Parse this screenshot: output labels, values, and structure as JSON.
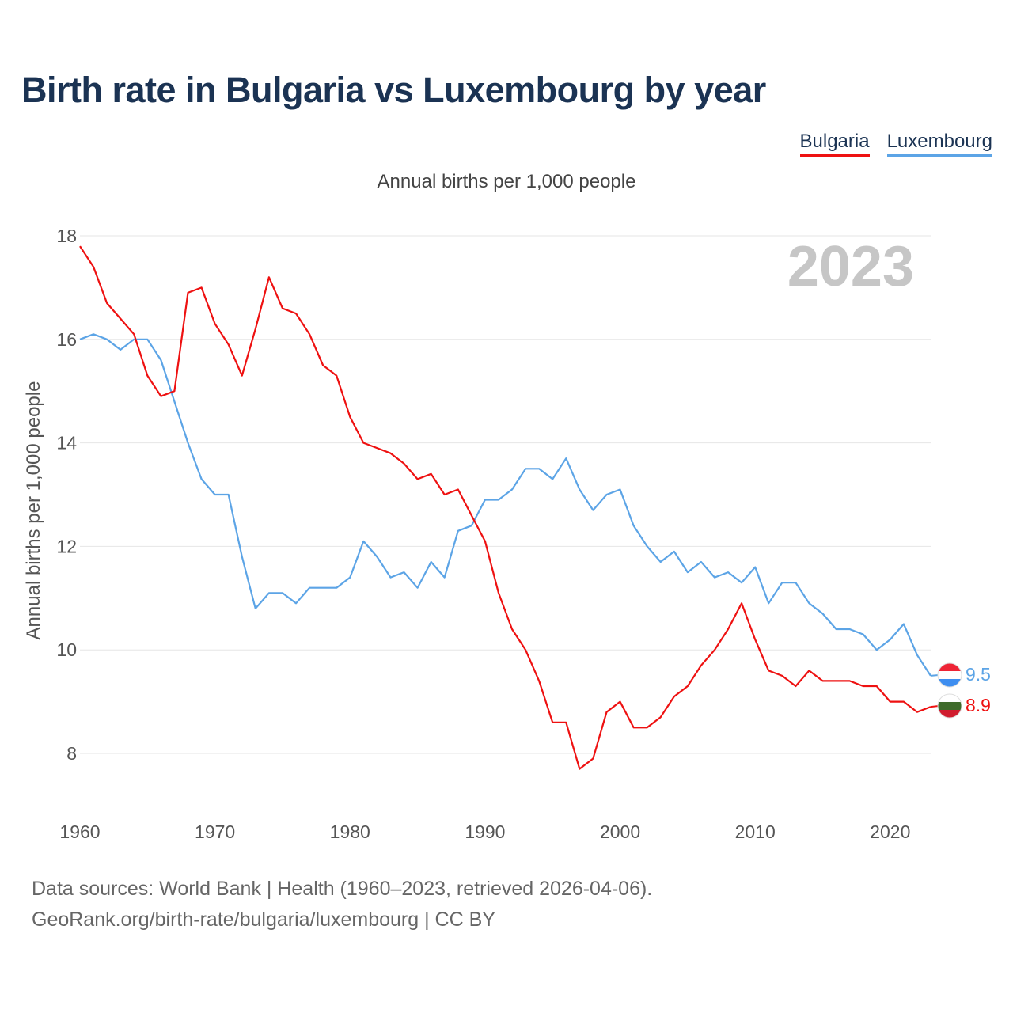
{
  "title": "Birth rate in Bulgaria vs Luxembourg by year",
  "subtitle": "Annual births per 1,000 people",
  "legend": [
    {
      "label": "Bulgaria",
      "color": "#ee1111"
    },
    {
      "label": "Luxembourg",
      "color": "#5ca4e6"
    }
  ],
  "footer": {
    "line1": "Data sources: World Bank | Health (1960–2023, retrieved 2026-04-06).",
    "line2": "GeoRank.org/birth-rate/bulgaria/luxembourg | CC BY"
  },
  "chart_data": {
    "type": "line",
    "title": "Birth rate in Bulgaria vs Luxembourg by year",
    "xlabel": "",
    "ylabel": "Annual births per 1,000 people",
    "xlim": [
      1960,
      2023
    ],
    "ylim": [
      7,
      18.5
    ],
    "x_ticks": [
      "1960",
      "1970",
      "1980",
      "1990",
      "2000",
      "2010",
      "2020"
    ],
    "y_ticks": [
      "8",
      "10",
      "12",
      "14",
      "16",
      "18"
    ],
    "year_watermark": "2023",
    "x": [
      1960,
      1961,
      1962,
      1963,
      1964,
      1965,
      1966,
      1967,
      1968,
      1969,
      1970,
      1971,
      1972,
      1973,
      1974,
      1975,
      1976,
      1977,
      1978,
      1979,
      1980,
      1981,
      1982,
      1983,
      1984,
      1985,
      1986,
      1987,
      1988,
      1989,
      1990,
      1991,
      1992,
      1993,
      1994,
      1995,
      1996,
      1997,
      1998,
      1999,
      2000,
      2001,
      2002,
      2003,
      2004,
      2005,
      2006,
      2007,
      2008,
      2009,
      2010,
      2011,
      2012,
      2013,
      2014,
      2015,
      2016,
      2017,
      2018,
      2019,
      2020,
      2021,
      2022,
      2023
    ],
    "series": [
      {
        "name": "Bulgaria",
        "color": "#ee1111",
        "end_label": "8.9",
        "values": [
          17.8,
          17.4,
          16.7,
          16.4,
          16.1,
          15.3,
          14.9,
          15.0,
          16.9,
          17.0,
          16.3,
          15.9,
          15.3,
          16.2,
          17.2,
          16.6,
          16.5,
          16.1,
          15.5,
          15.3,
          14.5,
          14.0,
          13.9,
          13.8,
          13.6,
          13.3,
          13.4,
          13.0,
          13.1,
          12.6,
          12.1,
          11.1,
          10.4,
          10.0,
          9.4,
          8.6,
          8.6,
          7.7,
          7.9,
          8.8,
          9.0,
          8.5,
          8.5,
          8.7,
          9.1,
          9.3,
          9.7,
          10.0,
          10.4,
          10.9,
          10.2,
          9.6,
          9.5,
          9.3,
          9.6,
          9.4,
          9.4,
          9.4,
          9.3,
          9.3,
          9.0,
          9.0,
          8.8,
          8.9
        ]
      },
      {
        "name": "Luxembourg",
        "color": "#5ca4e6",
        "end_label": "9.5",
        "values": [
          16.0,
          16.1,
          16.0,
          15.8,
          16.0,
          16.0,
          15.6,
          14.8,
          14.0,
          13.3,
          13.0,
          13.0,
          11.8,
          10.8,
          11.1,
          11.1,
          10.9,
          11.2,
          11.2,
          11.2,
          11.4,
          12.1,
          11.8,
          11.4,
          11.5,
          11.2,
          11.7,
          11.4,
          12.3,
          12.4,
          12.9,
          12.9,
          13.1,
          13.5,
          13.5,
          13.3,
          13.7,
          13.1,
          12.7,
          13.0,
          13.1,
          12.4,
          12.0,
          11.7,
          11.9,
          11.5,
          11.7,
          11.4,
          11.5,
          11.3,
          11.6,
          10.9,
          11.3,
          11.3,
          10.9,
          10.7,
          10.4,
          10.4,
          10.3,
          10.0,
          10.2,
          10.5,
          9.9,
          9.5
        ]
      }
    ]
  }
}
